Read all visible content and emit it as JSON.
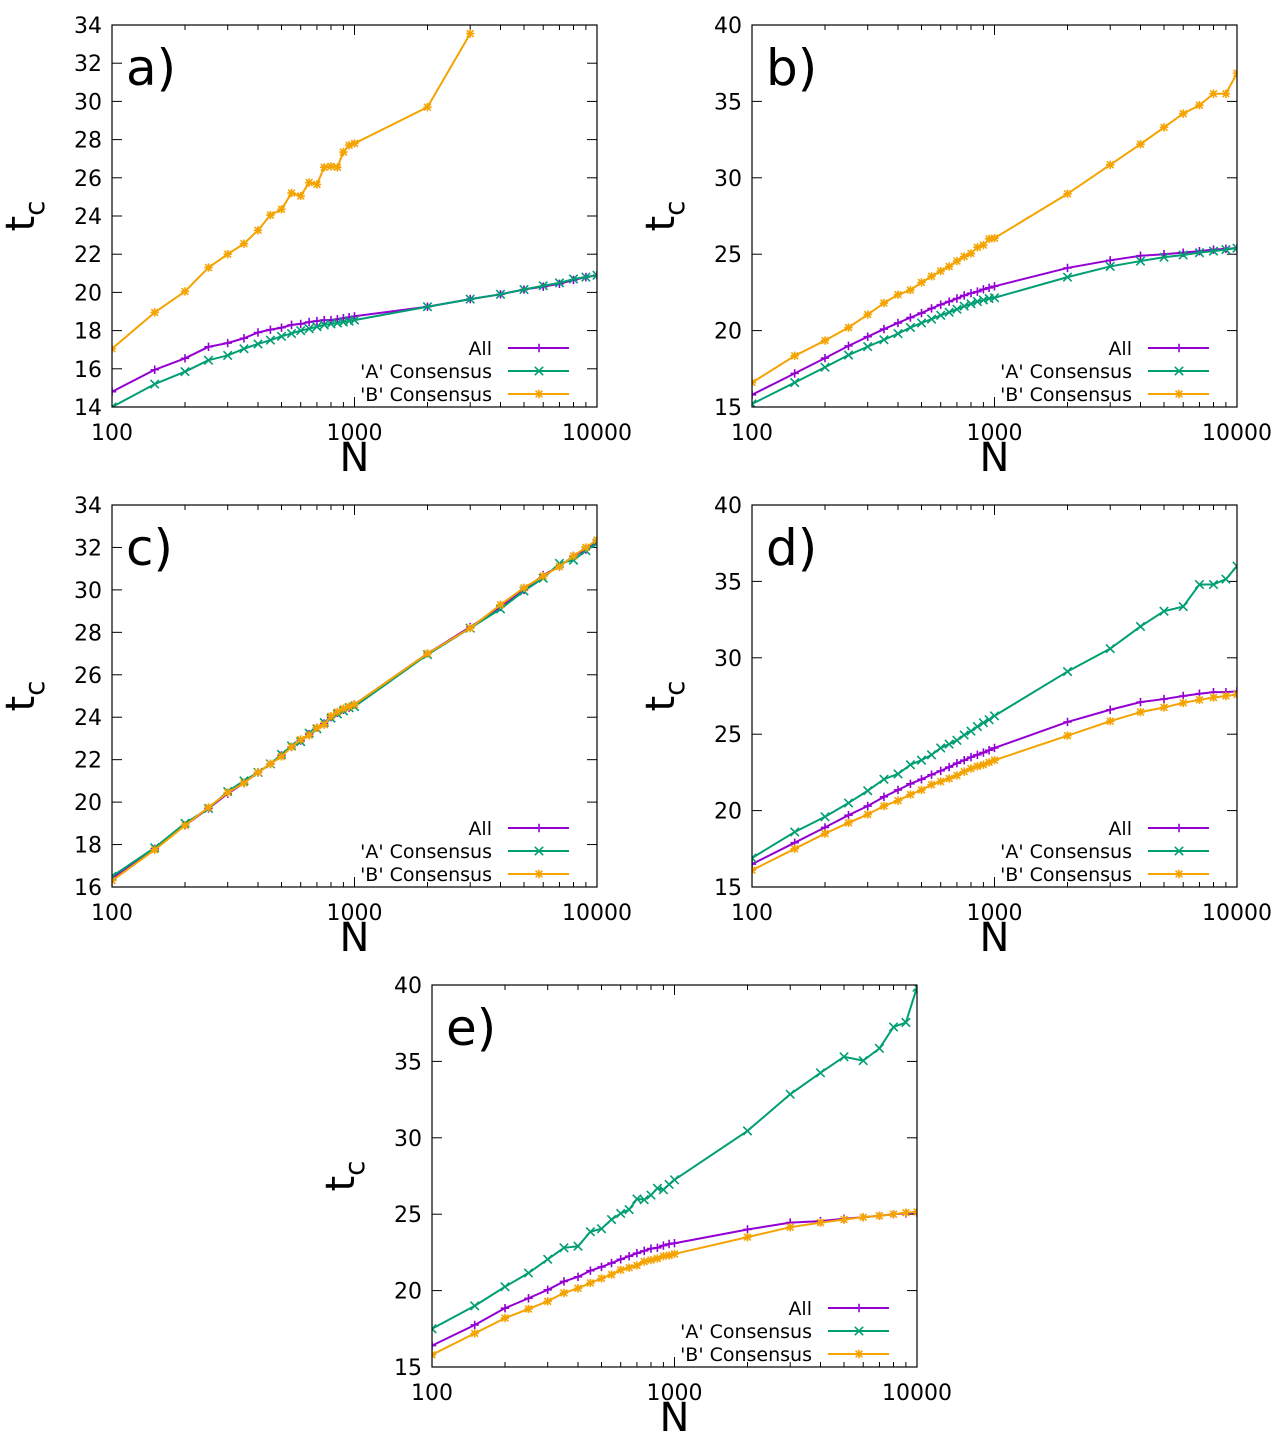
{
  "colors": {
    "all": "#9400d3",
    "a": "#009e73",
    "b": "#f4a300"
  },
  "legend": [
    "All",
    "'A' Consensus",
    "'B' Consensus"
  ],
  "chart_data": [
    {
      "type": "line",
      "label": "a)",
      "xlabel": "N",
      "ylabel": "t",
      "ylabel_sub": "c",
      "xscale": "log",
      "xlim": [
        100,
        10000
      ],
      "xticks": [
        "100",
        "1000",
        "10000"
      ],
      "ylim": [
        14,
        34
      ],
      "yticks": [
        "14",
        "16",
        "18",
        "20",
        "22",
        "24",
        "26",
        "28",
        "30",
        "32",
        "34"
      ],
      "legend_position": "bottom-right",
      "series": [
        {
          "name": "All",
          "x": [
            100,
            150,
            200,
            250,
            300,
            350,
            400,
            450,
            500,
            550,
            600,
            650,
            700,
            750,
            800,
            850,
            900,
            950,
            1000,
            2000,
            3000,
            4000,
            5000,
            6000,
            7000,
            8000,
            9000,
            10000
          ],
          "y": [
            14.8,
            15.95,
            16.55,
            17.15,
            17.35,
            17.6,
            17.9,
            18.05,
            18.15,
            18.3,
            18.35,
            18.45,
            18.5,
            18.55,
            18.55,
            18.6,
            18.65,
            18.7,
            18.75,
            19.25,
            19.65,
            19.9,
            20.15,
            20.3,
            20.45,
            20.65,
            20.8,
            20.9
          ]
        },
        {
          "name": "'A' Consensus",
          "x": [
            100,
            150,
            200,
            250,
            300,
            350,
            400,
            450,
            500,
            550,
            600,
            650,
            700,
            750,
            800,
            850,
            900,
            950,
            1000,
            2000,
            3000,
            4000,
            5000,
            6000,
            7000,
            8000,
            9000,
            10000
          ],
          "y": [
            14.0,
            15.2,
            15.85,
            16.45,
            16.7,
            17.05,
            17.3,
            17.5,
            17.7,
            17.85,
            18.0,
            18.1,
            18.2,
            18.3,
            18.35,
            18.4,
            18.45,
            18.5,
            18.55,
            19.25,
            19.65,
            19.9,
            20.15,
            20.35,
            20.5,
            20.7,
            20.8,
            20.9
          ]
        },
        {
          "name": "'B' Consensus",
          "x": [
            100,
            150,
            200,
            250,
            300,
            350,
            400,
            450,
            500,
            550,
            600,
            650,
            700,
            750,
            800,
            850,
            900,
            950,
            1000,
            2000,
            3000
          ],
          "y": [
            17.05,
            18.95,
            20.05,
            21.3,
            22.0,
            22.55,
            23.25,
            24.05,
            24.35,
            25.2,
            25.05,
            25.75,
            25.65,
            26.55,
            26.6,
            26.55,
            27.35,
            27.7,
            27.8,
            29.7,
            33.55
          ]
        }
      ]
    },
    {
      "type": "line",
      "label": "b)",
      "xlabel": "N",
      "ylabel": "t",
      "ylabel_sub": "c",
      "xscale": "log",
      "xlim": [
        100,
        10000
      ],
      "xticks": [
        "100",
        "1000",
        "10000"
      ],
      "ylim": [
        15,
        40
      ],
      "yticks": [
        "15",
        "20",
        "25",
        "30",
        "35",
        "40"
      ],
      "legend_position": "bottom-right",
      "series": [
        {
          "name": "All",
          "x": [
            100,
            150,
            200,
            250,
            300,
            350,
            400,
            450,
            500,
            550,
            600,
            650,
            700,
            750,
            800,
            850,
            900,
            950,
            1000,
            2000,
            3000,
            4000,
            5000,
            6000,
            7000,
            8000,
            9000,
            10000
          ],
          "y": [
            15.8,
            17.2,
            18.2,
            19.0,
            19.6,
            20.1,
            20.5,
            20.85,
            21.15,
            21.45,
            21.7,
            21.9,
            22.1,
            22.3,
            22.45,
            22.55,
            22.7,
            22.8,
            22.9,
            24.1,
            24.6,
            24.9,
            25.0,
            25.1,
            25.2,
            25.3,
            25.35,
            25.4
          ]
        },
        {
          "name": "'A' Consensus",
          "x": [
            100,
            150,
            200,
            250,
            300,
            350,
            400,
            450,
            500,
            550,
            600,
            650,
            700,
            750,
            800,
            850,
            900,
            950,
            1000,
            2000,
            3000,
            4000,
            5000,
            6000,
            7000,
            8000,
            9000,
            10000
          ],
          "y": [
            15.2,
            16.6,
            17.6,
            18.4,
            18.95,
            19.4,
            19.8,
            20.2,
            20.5,
            20.75,
            21.0,
            21.2,
            21.4,
            21.6,
            21.75,
            21.9,
            22.0,
            22.1,
            22.15,
            23.5,
            24.2,
            24.55,
            24.8,
            24.95,
            25.1,
            25.2,
            25.3,
            25.4
          ]
        },
        {
          "name": "'B' Consensus",
          "x": [
            100,
            150,
            200,
            250,
            300,
            350,
            400,
            450,
            500,
            550,
            600,
            650,
            700,
            750,
            800,
            850,
            900,
            950,
            1000,
            2000,
            3000,
            4000,
            5000,
            6000,
            7000,
            8000,
            9000,
            10000
          ],
          "y": [
            16.6,
            18.35,
            19.35,
            20.2,
            21.05,
            21.8,
            22.35,
            22.65,
            23.15,
            23.55,
            23.9,
            24.2,
            24.55,
            24.85,
            25.05,
            25.45,
            25.6,
            26.0,
            26.05,
            28.95,
            30.85,
            32.2,
            33.3,
            34.2,
            34.75,
            35.5,
            35.5,
            36.85
          ]
        }
      ]
    },
    {
      "type": "line",
      "label": "c)",
      "xlabel": "N",
      "ylabel": "t",
      "ylabel_sub": "c",
      "xscale": "log",
      "xlim": [
        100,
        10000
      ],
      "xticks": [
        "100",
        "1000",
        "10000"
      ],
      "ylim": [
        16,
        34
      ],
      "yticks": [
        "16",
        "18",
        "20",
        "22",
        "24",
        "26",
        "28",
        "30",
        "32",
        "34"
      ],
      "legend_position": "bottom-right",
      "series": [
        {
          "name": "All",
          "x": [
            100,
            150,
            200,
            250,
            300,
            350,
            400,
            450,
            500,
            550,
            600,
            650,
            700,
            750,
            800,
            850,
            900,
            950,
            1000,
            2000,
            3000,
            4000,
            5000,
            6000,
            7000,
            8000,
            9000,
            10000
          ],
          "y": [
            16.4,
            17.8,
            18.9,
            19.7,
            20.4,
            20.9,
            21.4,
            21.8,
            22.2,
            22.6,
            22.9,
            23.2,
            23.5,
            23.7,
            24.0,
            24.2,
            24.35,
            24.45,
            24.6,
            27.0,
            28.25,
            29.2,
            30.0,
            30.7,
            31.1,
            31.6,
            31.9,
            32.3
          ]
        },
        {
          "name": "'A' Consensus",
          "x": [
            100,
            150,
            200,
            250,
            300,
            350,
            400,
            450,
            500,
            550,
            600,
            650,
            700,
            750,
            800,
            850,
            900,
            950,
            1000,
            2000,
            3000,
            4000,
            5000,
            6000,
            7000,
            8000,
            9000,
            10000
          ],
          "y": [
            16.5,
            17.85,
            19.0,
            19.7,
            20.5,
            21.0,
            21.4,
            21.8,
            22.25,
            22.65,
            22.85,
            23.25,
            23.45,
            23.75,
            23.95,
            24.15,
            24.3,
            24.45,
            24.5,
            26.95,
            28.2,
            29.1,
            29.95,
            30.55,
            31.25,
            31.4,
            31.85,
            32.2
          ]
        },
        {
          "name": "'B' Consensus",
          "x": [
            100,
            150,
            200,
            250,
            300,
            350,
            400,
            450,
            500,
            550,
            600,
            650,
            700,
            750,
            800,
            850,
            900,
            950,
            1000,
            2000,
            3000,
            4000,
            5000,
            6000,
            7000,
            8000,
            9000,
            10000
          ],
          "y": [
            16.3,
            17.75,
            18.9,
            19.75,
            20.45,
            20.9,
            21.4,
            21.8,
            22.15,
            22.6,
            22.95,
            23.15,
            23.5,
            23.65,
            24.05,
            24.25,
            24.4,
            24.5,
            24.6,
            27.0,
            28.2,
            29.3,
            30.1,
            30.65,
            31.1,
            31.6,
            32.0,
            32.35
          ]
        }
      ]
    },
    {
      "type": "line",
      "label": "d)",
      "xlabel": "N",
      "ylabel": "t",
      "ylabel_sub": "c",
      "xscale": "log",
      "xlim": [
        100,
        10000
      ],
      "xticks": [
        "100",
        "1000",
        "10000"
      ],
      "ylim": [
        15,
        40
      ],
      "yticks": [
        "15",
        "20",
        "25",
        "30",
        "35",
        "40"
      ],
      "legend_position": "bottom-right",
      "series": [
        {
          "name": "All",
          "x": [
            100,
            150,
            200,
            250,
            300,
            350,
            400,
            450,
            500,
            550,
            600,
            650,
            700,
            750,
            800,
            850,
            900,
            950,
            1000,
            2000,
            3000,
            4000,
            5000,
            6000,
            7000,
            8000,
            9000,
            10000
          ],
          "y": [
            16.5,
            17.9,
            18.9,
            19.7,
            20.3,
            20.9,
            21.35,
            21.75,
            22.05,
            22.35,
            22.6,
            22.85,
            23.1,
            23.3,
            23.5,
            23.65,
            23.8,
            23.95,
            24.1,
            25.8,
            26.6,
            27.1,
            27.3,
            27.5,
            27.65,
            27.75,
            27.75,
            27.8
          ]
        },
        {
          "name": "'A' Consensus",
          "x": [
            100,
            150,
            200,
            250,
            300,
            350,
            400,
            450,
            500,
            550,
            600,
            650,
            700,
            750,
            800,
            850,
            900,
            950,
            1000,
            2000,
            3000,
            4000,
            5000,
            6000,
            7000,
            8000,
            9000,
            10000
          ],
          "y": [
            16.9,
            18.6,
            19.6,
            20.5,
            21.3,
            22.05,
            22.4,
            23.0,
            23.3,
            23.65,
            24.1,
            24.35,
            24.6,
            24.95,
            25.2,
            25.5,
            25.75,
            25.95,
            26.2,
            29.1,
            30.6,
            32.05,
            33.05,
            33.35,
            34.8,
            34.8,
            35.15,
            36.0
          ]
        },
        {
          "name": "'B' Consensus",
          "x": [
            100,
            150,
            200,
            250,
            300,
            350,
            400,
            450,
            500,
            550,
            600,
            650,
            700,
            750,
            800,
            850,
            900,
            950,
            1000,
            2000,
            3000,
            4000,
            5000,
            6000,
            7000,
            8000,
            9000,
            10000
          ],
          "y": [
            16.1,
            17.5,
            18.5,
            19.2,
            19.75,
            20.3,
            20.65,
            21.05,
            21.35,
            21.7,
            21.9,
            22.1,
            22.3,
            22.55,
            22.75,
            22.9,
            23.0,
            23.15,
            23.3,
            24.9,
            25.85,
            26.45,
            26.75,
            27.05,
            27.25,
            27.4,
            27.5,
            27.6
          ]
        }
      ]
    },
    {
      "type": "line",
      "label": "e)",
      "xlabel": "N",
      "ylabel": "t",
      "ylabel_sub": "c",
      "xscale": "log",
      "xlim": [
        100,
        10000
      ],
      "xticks": [
        "100",
        "1000",
        "10000"
      ],
      "ylim": [
        15,
        40
      ],
      "yticks": [
        "15",
        "20",
        "25",
        "30",
        "35",
        "40"
      ],
      "legend_position": "bottom-right",
      "series": [
        {
          "name": "All",
          "x": [
            100,
            150,
            200,
            250,
            300,
            350,
            400,
            450,
            500,
            550,
            600,
            650,
            700,
            750,
            800,
            850,
            900,
            950,
            1000,
            2000,
            3000,
            4000,
            5000,
            6000,
            7000,
            8000,
            9000,
            10000
          ],
          "y": [
            16.4,
            17.75,
            18.85,
            19.5,
            20.05,
            20.6,
            20.9,
            21.3,
            21.55,
            21.8,
            22.05,
            22.25,
            22.45,
            22.6,
            22.75,
            22.8,
            22.95,
            23.05,
            23.1,
            24.0,
            24.45,
            24.55,
            24.7,
            24.8,
            24.9,
            25.0,
            25.05,
            25.1
          ]
        },
        {
          "name": "'A' Consensus",
          "x": [
            100,
            150,
            200,
            250,
            300,
            350,
            400,
            450,
            500,
            550,
            600,
            650,
            700,
            750,
            800,
            850,
            900,
            950,
            1000,
            2000,
            3000,
            4000,
            5000,
            6000,
            7000,
            8000,
            9000,
            10000
          ],
          "y": [
            17.5,
            19.0,
            20.25,
            21.15,
            22.05,
            22.8,
            22.9,
            23.85,
            24.05,
            24.65,
            25.05,
            25.3,
            26.0,
            25.95,
            26.25,
            26.7,
            26.6,
            26.95,
            27.25,
            30.45,
            32.85,
            34.25,
            35.3,
            35.05,
            35.85,
            37.25,
            37.55,
            39.85
          ]
        },
        {
          "name": "'B' Consensus",
          "x": [
            100,
            150,
            200,
            250,
            300,
            350,
            400,
            450,
            500,
            550,
            600,
            650,
            700,
            750,
            800,
            850,
            900,
            950,
            1000,
            2000,
            3000,
            4000,
            5000,
            6000,
            7000,
            8000,
            9000,
            10000
          ],
          "y": [
            15.8,
            17.2,
            18.2,
            18.8,
            19.3,
            19.85,
            20.15,
            20.5,
            20.8,
            21.05,
            21.35,
            21.5,
            21.65,
            21.9,
            22.0,
            22.1,
            22.25,
            22.3,
            22.4,
            23.5,
            24.15,
            24.45,
            24.65,
            24.8,
            24.9,
            25.0,
            25.1,
            25.15
          ]
        }
      ]
    }
  ]
}
